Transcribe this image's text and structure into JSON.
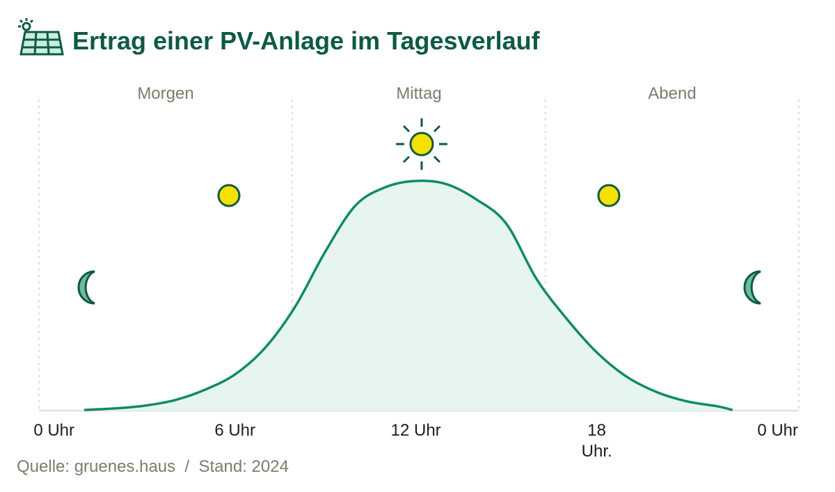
{
  "chart_data": {
    "type": "area",
    "title": "Ertrag einer PV-Anlage im Tagesverlauf",
    "sections": [
      "Morgen",
      "Mittag",
      "Abend"
    ],
    "x": [
      1,
      2,
      3,
      4,
      5,
      6,
      7,
      8,
      9,
      10,
      11,
      12,
      13,
      14,
      15,
      16,
      17,
      18,
      19,
      20,
      21,
      22,
      22.5
    ],
    "values": [
      0.2,
      0.7,
      1.6,
      3.4,
      6.8,
      11.8,
      20.5,
      34,
      52,
      67,
      73,
      75,
      74,
      69,
      61,
      43,
      30,
      19,
      11,
      6,
      3,
      1.4,
      0.2
    ],
    "color": "#0f8a6a",
    "fill": "#e6f6ee",
    "xlim": [
      -0.5,
      24.7
    ],
    "ylim": [
      0,
      100
    ],
    "xticks": [
      {
        "value": 0,
        "label": "0 Uhr"
      },
      {
        "value": 6,
        "label": "6 Uhr"
      },
      {
        "value": 12,
        "label": "12 Uhr"
      },
      {
        "value": 18,
        "label": "18 Uhr."
      },
      {
        "value": 24,
        "label": "0 Uhr"
      }
    ],
    "source": "Quelle: gruenes.haus  /  Stand: 2024"
  }
}
